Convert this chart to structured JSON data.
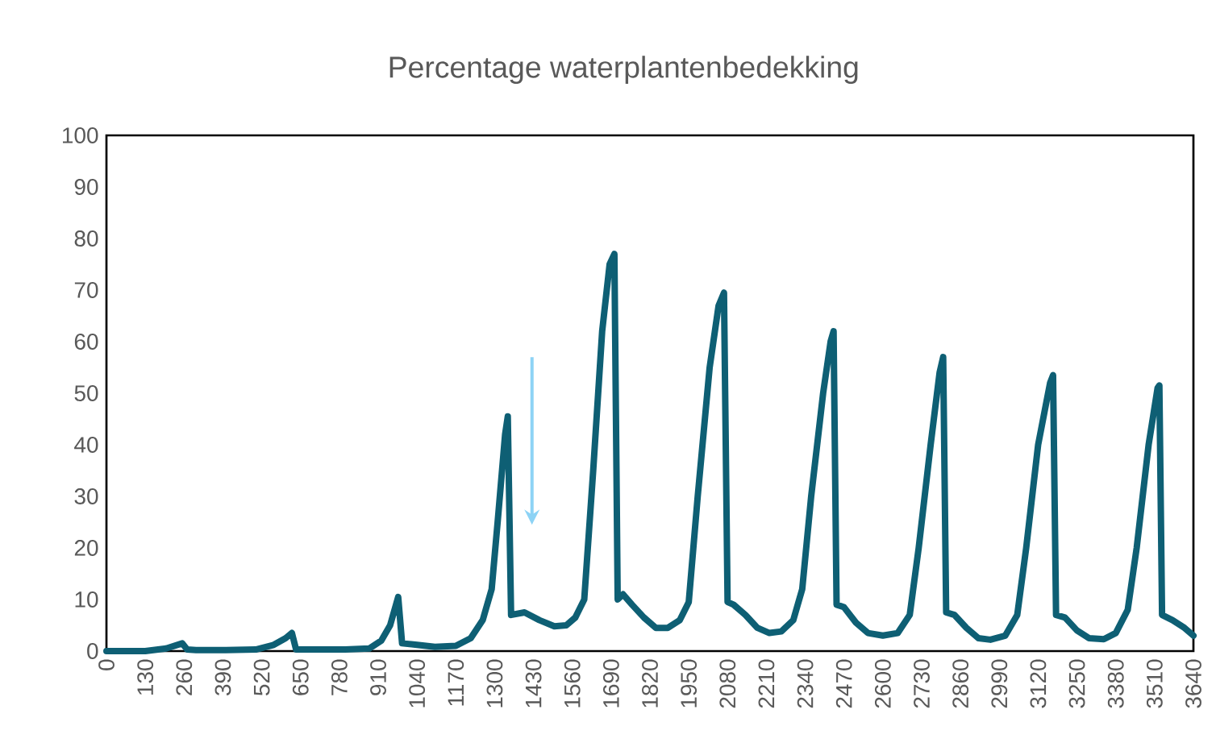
{
  "chart_data": {
    "type": "line",
    "title": "Percentage waterplantenbedekking",
    "xlim": [
      0,
      3640
    ],
    "xticks": [
      0,
      130,
      260,
      390,
      520,
      650,
      780,
      910,
      1040,
      1170,
      1300,
      1430,
      1560,
      1690,
      1820,
      1950,
      2080,
      2210,
      2340,
      2470,
      2600,
      2730,
      2860,
      2990,
      3120,
      3250,
      3380,
      3510,
      3640
    ],
    "ylim": [
      0,
      100
    ],
    "yticks": [
      0,
      10,
      20,
      30,
      40,
      50,
      60,
      70,
      80,
      90,
      100
    ],
    "marker": "none",
    "line_style": "solid",
    "series": [
      {
        "color": "#0e5f74",
        "x": [
          0,
          130,
          200,
          254,
          270,
          300,
          400,
          500,
          560,
          600,
          621,
          635,
          700,
          800,
          880,
          920,
          950,
          977,
          990,
          1040,
          1100,
          1170,
          1220,
          1260,
          1290,
          1310,
          1335,
          1344,
          1355,
          1400,
          1450,
          1500,
          1540,
          1570,
          1600,
          1630,
          1660,
          1685,
          1701,
          1712,
          1730,
          1760,
          1800,
          1840,
          1880,
          1920,
          1950,
          1980,
          2020,
          2050,
          2068,
          2080,
          2100,
          2140,
          2180,
          2220,
          2260,
          2300,
          2330,
          2360,
          2400,
          2425,
          2435,
          2445,
          2470,
          2510,
          2550,
          2600,
          2650,
          2690,
          2720,
          2760,
          2790,
          2802,
          2812,
          2840,
          2880,
          2920,
          2960,
          3010,
          3050,
          3080,
          3120,
          3160,
          3170,
          3180,
          3210,
          3250,
          3290,
          3340,
          3380,
          3420,
          3450,
          3490,
          3520,
          3526,
          3535,
          3570,
          3610,
          3640
        ],
        "values": [
          0,
          0,
          0.5,
          1.5,
          0.3,
          0.2,
          0.2,
          0.3,
          1.2,
          2.5,
          3.5,
          0.3,
          0.3,
          0.3,
          0.5,
          2,
          5,
          10.5,
          1.5,
          1.2,
          0.8,
          1,
          2.5,
          6,
          12,
          25,
          42,
          45.5,
          7,
          7.5,
          6,
          4.8,
          5,
          6.5,
          10,
          35,
          62,
          75,
          77,
          10,
          11,
          9,
          6.5,
          4.5,
          4.5,
          6,
          9.5,
          30,
          55,
          67,
          69.5,
          9.5,
          9,
          7,
          4.5,
          3.5,
          3.8,
          6,
          12,
          30,
          50,
          60,
          62,
          9,
          8.5,
          5.5,
          3.5,
          3,
          3.5,
          7,
          20,
          40,
          54,
          57,
          7.5,
          7,
          4.5,
          2.5,
          2.2,
          3,
          7,
          20,
          40,
          52,
          53.5,
          7,
          6.5,
          4,
          2.5,
          2.3,
          3.5,
          8,
          20,
          40,
          51,
          51.5,
          7,
          6,
          4.5,
          3
        ]
      }
    ]
  }
}
